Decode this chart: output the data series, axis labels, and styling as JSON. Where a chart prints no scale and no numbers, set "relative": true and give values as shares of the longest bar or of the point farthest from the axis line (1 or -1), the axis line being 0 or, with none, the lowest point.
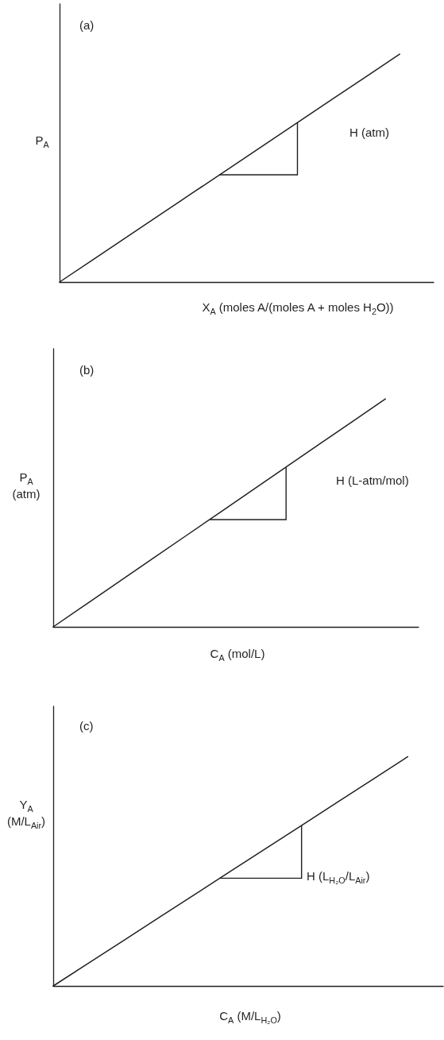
{
  "chart_data": [
    {
      "type": "line",
      "relative": true,
      "title": "(a)",
      "xlabel": "X$_{A}$ (moles A/(moles A + moles H$_{2}$O))",
      "ylabel": "P$_{A}$",
      "annotations": [
        "H (atm)"
      ],
      "categories": [
        null,
        null,
        null,
        null,
        null,
        null,
        null,
        null,
        null,
        null,
        null,
        null
      ],
      "values": [
        0,
        0.1,
        0.2,
        0.3,
        0.4,
        0.5,
        0.6,
        0.7,
        0.8,
        0.9,
        1,
        null
      ],
      "color": "#231f20",
      "tick_labels": false
    },
    {
      "type": "line",
      "relative": true,
      "title": "(b)",
      "xlabel": "C$_{A}$ (mol/L)",
      "ylabel": "P$_{A}$ (atm)",
      "annotations": [
        "H (L-atm/mol)"
      ],
      "categories": [
        null,
        null,
        null,
        null,
        null,
        null,
        null,
        null,
        null,
        null,
        null,
        null
      ],
      "values": [
        0,
        0.1,
        0.2,
        0.3,
        0.4,
        0.5,
        0.6,
        0.7,
        0.8,
        0.9,
        1,
        null
      ],
      "color": "#231f20",
      "tick_labels": false
    },
    {
      "type": "line",
      "relative": true,
      "title": "(c)",
      "xlabel": "C$_{A}$ (M/L$_{H₂O}$)",
      "ylabel": "Y$_{A}$ (M/L$_{Air}$)",
      "annotations": [
        "H (L$_{H₂O}$/L$_{Air}$)"
      ],
      "categories": [
        null,
        null,
        null,
        null,
        null,
        null,
        null,
        null,
        null,
        null,
        null,
        null
      ],
      "values": [
        0,
        0.1,
        0.2,
        0.3,
        0.4,
        0.5,
        0.6,
        0.7,
        0.8,
        0.9,
        1,
        null
      ],
      "color": "#231f20",
      "tick_labels": false
    }
  ]
}
